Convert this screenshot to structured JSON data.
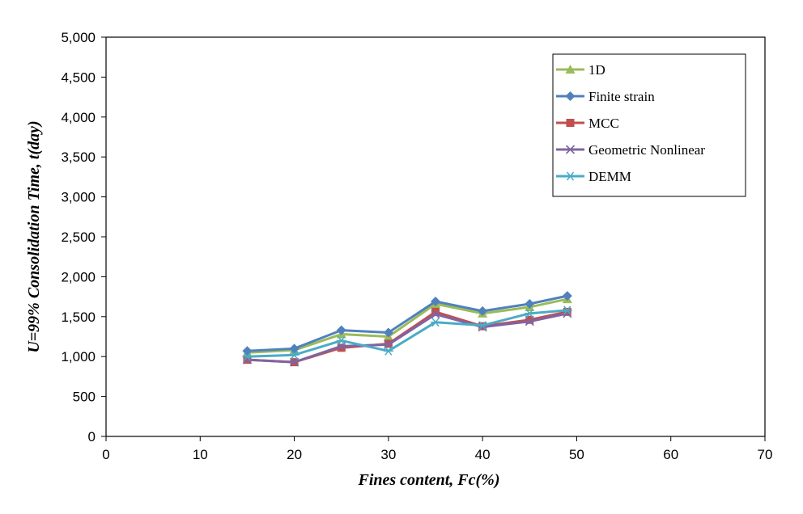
{
  "chart_data": {
    "type": "line",
    "title": "",
    "xlabel": "Fines content, Fc(%)",
    "ylabel": "U=99% Consolidation Time, t(day)",
    "xlim": [
      0,
      70
    ],
    "ylim": [
      0,
      5000
    ],
    "xticks": [
      0,
      10,
      20,
      30,
      40,
      50,
      60,
      70
    ],
    "yticks": [
      0,
      500,
      1000,
      1500,
      2000,
      2500,
      3000,
      3500,
      4000,
      4500,
      5000
    ],
    "xtick_labels": [
      "0",
      "10",
      "20",
      "30",
      "40",
      "50",
      "60",
      "70"
    ],
    "ytick_labels": [
      "0",
      "500",
      "1,000",
      "1,500",
      "2,000",
      "2,500",
      "3,000",
      "3,500",
      "4,000",
      "4,500",
      "5,000"
    ],
    "x": [
      15,
      20,
      25,
      30,
      35,
      40,
      45,
      49
    ],
    "series": [
      {
        "name": "1D",
        "color": "#9BBB59",
        "marker": "triangle",
        "values": [
          1050,
          1080,
          1280,
          1250,
          1660,
          1540,
          1620,
          1720
        ]
      },
      {
        "name": "Finite strain",
        "color": "#4F81BD",
        "marker": "diamond",
        "values": [
          1070,
          1100,
          1330,
          1300,
          1690,
          1570,
          1660,
          1760
        ]
      },
      {
        "name": "MCC",
        "color": "#C0504D",
        "marker": "square",
        "values": [
          960,
          930,
          1110,
          1160,
          1560,
          1380,
          1460,
          1560
        ]
      },
      {
        "name": "Geometric Nonlinear",
        "color": "#8064A2",
        "marker": "x",
        "values": [
          960,
          930,
          1130,
          1150,
          1530,
          1370,
          1440,
          1540
        ]
      },
      {
        "name": "DEMM",
        "color": "#4BACC6",
        "marker": "star",
        "values": [
          1000,
          1020,
          1200,
          1070,
          1430,
          1390,
          1540,
          1580
        ]
      }
    ],
    "grid": false,
    "legend_position": "top-right"
  }
}
